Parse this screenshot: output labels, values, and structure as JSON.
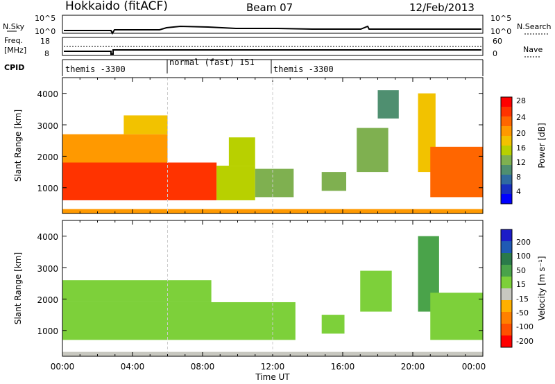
{
  "header": {
    "station": "Hokkaido (fitACF)",
    "beam": "Beam 07",
    "date": "12/Feb/2013"
  },
  "strip": {
    "nsky_label": "N.Sky",
    "nsky_ticks": [
      "10^5",
      "10^0"
    ],
    "nsearch_label": "N.Search",
    "nsearch_ticks": [
      "10^5",
      "10^0"
    ],
    "freq_label_1": "Freq.",
    "freq_label_2": "[MHz]",
    "freq_ticks": [
      "18",
      "8"
    ],
    "nave_label": "Nave",
    "nave_ticks": [
      "60",
      "0"
    ],
    "cpid_label": "CPID",
    "modes": [
      {
        "label": "themis -3300",
        "start_h": 0
      },
      {
        "label": "normal (fast) 151",
        "start_h": 6
      },
      {
        "label": "themis -3300",
        "start_h": 12
      }
    ]
  },
  "axes": {
    "ylabel": "Slant Range [km]",
    "xlabel": "Time UT",
    "x_ticks": [
      "00:00",
      "04:00",
      "08:00",
      "12:00",
      "16:00",
      "20:00",
      "00:00"
    ],
    "y_ticks": [
      "1000",
      "2000",
      "3000",
      "4000"
    ]
  },
  "power_colorbar": {
    "label": "Power [dB]",
    "ticks": [
      "28",
      "24",
      "20",
      "16",
      "12",
      "8",
      "4"
    ],
    "colors": [
      "#ff0000",
      "#ff3300",
      "#ff6600",
      "#ff9900",
      "#f2c200",
      "#b8d000",
      "#7fb050",
      "#4f8f70",
      "#2f6aa0",
      "#1830c0",
      "#0000ff"
    ]
  },
  "velocity_colorbar": {
    "label": "Velocity [m s⁻¹]",
    "ticks": [
      "200",
      "100",
      "50",
      "15",
      "-15",
      "-50",
      "-100",
      "-200"
    ],
    "colors": [
      "#1c1cc8",
      "#1f5ab4",
      "#2a7a4a",
      "#4aa34a",
      "#7dd03a",
      "#c8c8c0",
      "#ffb000",
      "#ff8000",
      "#ff5000",
      "#ff0000"
    ]
  },
  "chart_data": {
    "type": "heatmap",
    "x_range_hours": [
      0,
      24
    ],
    "y_range_km": [
      180,
      4500
    ],
    "panels": [
      {
        "name": "power",
        "regions": [
          {
            "t0": 0.0,
            "t1": 8.8,
            "r0": 600,
            "r1": 1800,
            "level": 26
          },
          {
            "t0": 0.0,
            "t1": 6.0,
            "r0": 1800,
            "r1": 2700,
            "level": 22
          },
          {
            "t0": 3.5,
            "t1": 6.0,
            "r0": 2700,
            "r1": 3300,
            "level": 18
          },
          {
            "t0": 8.8,
            "t1": 11.0,
            "r0": 600,
            "r1": 1700,
            "level": 15
          },
          {
            "t0": 9.5,
            "t1": 11.0,
            "r0": 1700,
            "r1": 2600,
            "level": 16
          },
          {
            "t0": 11.0,
            "t1": 13.2,
            "r0": 700,
            "r1": 1600,
            "level": 13
          },
          {
            "t0": 14.8,
            "t1": 16.2,
            "r0": 900,
            "r1": 1500,
            "level": 12
          },
          {
            "t0": 16.8,
            "t1": 18.6,
            "r0": 1500,
            "r1": 2900,
            "level": 12
          },
          {
            "t0": 18.0,
            "t1": 19.2,
            "r0": 3200,
            "r1": 4100,
            "level": 9
          },
          {
            "t0": 20.3,
            "t1": 21.3,
            "r0": 1500,
            "r1": 4000,
            "level": 18
          },
          {
            "t0": 21.0,
            "t1": 24.0,
            "r0": 700,
            "r1": 2300,
            "level": 24
          },
          {
            "t0": 0.0,
            "t1": 24.0,
            "r0": 180,
            "r1": 320,
            "level": 20
          }
        ]
      },
      {
        "name": "velocity",
        "regions": [
          {
            "t0": 0.0,
            "t1": 13.3,
            "r0": 700,
            "r1": 1900,
            "value": 0
          },
          {
            "t0": 0.0,
            "t1": 8.5,
            "r0": 1900,
            "r1": 2600,
            "value": 0
          },
          {
            "t0": 14.8,
            "t1": 16.1,
            "r0": 900,
            "r1": 1500,
            "value": 0
          },
          {
            "t0": 17.0,
            "t1": 18.8,
            "r0": 1600,
            "r1": 2900,
            "value": 0
          },
          {
            "t0": 20.3,
            "t1": 21.5,
            "r0": 1600,
            "r1": 4000,
            "value": 30
          },
          {
            "t0": 21.0,
            "t1": 24.0,
            "r0": 700,
            "r1": 2200,
            "value": 0
          },
          {
            "t0": 0.0,
            "t1": 24.0,
            "r0": 180,
            "r1": 320,
            "value": -40
          }
        ]
      }
    ]
  }
}
